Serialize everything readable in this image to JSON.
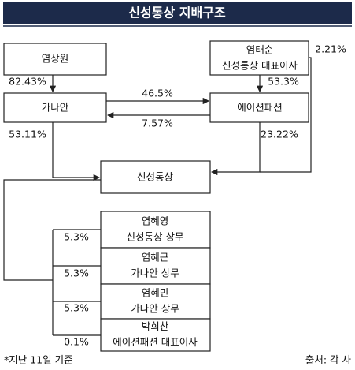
{
  "header": {
    "title": "신성통상 지배구조"
  },
  "nodes": [
    {
      "label": "염상원"
    },
    {
      "label": "염태순",
      "role": "신성통상 대표이사"
    },
    {
      "label": "가나안"
    },
    {
      "label": "에이션패션"
    },
    {
      "label": "신성통상"
    }
  ],
  "people": [
    {
      "name": "염혜영",
      "role": "신성통상 상무",
      "share": "5.3%"
    },
    {
      "name": "염혜근",
      "role": "가나안 상무",
      "share": "5.3%"
    },
    {
      "name": "염혜민",
      "role": "가나안 상무",
      "share": "5.3%"
    },
    {
      "name": "박희찬",
      "role": "에이션패션 대표이사",
      "share": "0.1%"
    }
  ],
  "edges": [
    {
      "from": "염상원",
      "to": "가나안",
      "label": "82.43%"
    },
    {
      "from": "염태순",
      "to": "에이션패션",
      "label": "53.3%"
    },
    {
      "from": "염태순",
      "to": "신성통상",
      "label": "2.21%"
    },
    {
      "from": "가나안",
      "to": "에이션패션",
      "label": "46.5%"
    },
    {
      "from": "에이션패션",
      "to": "가나안",
      "label": "7.57%"
    },
    {
      "from": "가나안",
      "to": "신성통상",
      "label": "53.11%"
    },
    {
      "from": "에이션패션",
      "to": "신성통상",
      "label": "23.22%"
    }
  ],
  "footer": {
    "note": "*지난 11일 기준",
    "source": "출처: 각 사"
  }
}
